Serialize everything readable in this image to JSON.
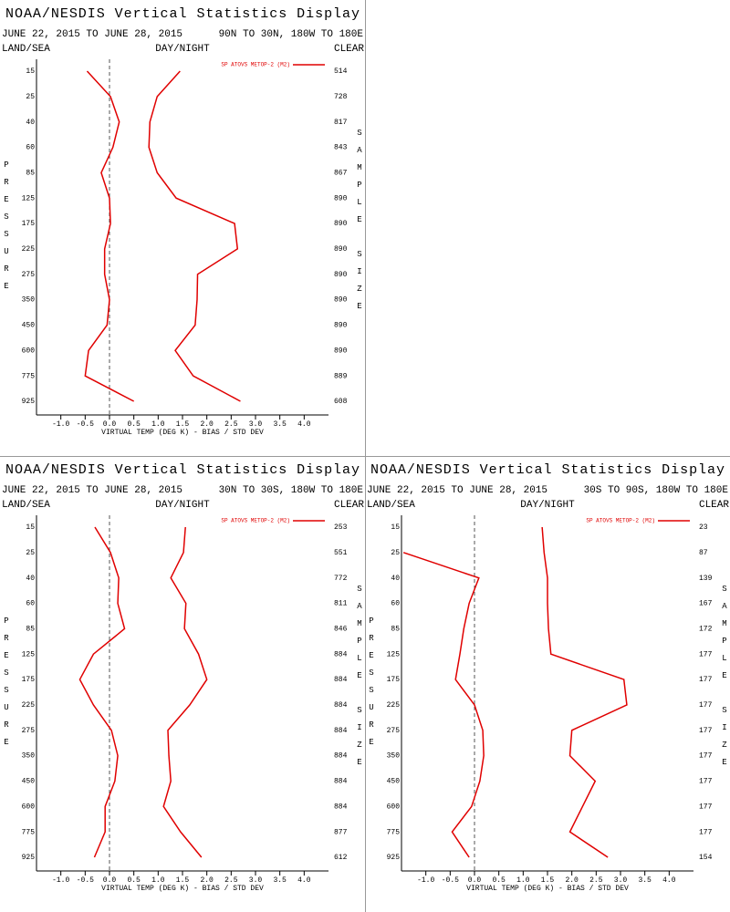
{
  "chart_data": [
    {
      "type": "line",
      "title": "NOAA/NESDIS Vertical Statistics Display",
      "date_range": "JUNE 22, 2015 TO JUNE 28, 2015",
      "region": "90N TO 30N, 180W TO 180E",
      "left_label": "LAND/SEA",
      "middle_label": "DAY/NIGHT",
      "right_label": "CLEAR",
      "y_label": "PRESSURE",
      "y2_label": "SAMPLE SIZE",
      "x_label": "VIRTUAL TEMP (DEG K) - BIAS / STD DEV",
      "categories": [
        "15",
        "25",
        "40",
        "60",
        "85",
        "125",
        "175",
        "225",
        "275",
        "350",
        "450",
        "600",
        "775",
        "925"
      ],
      "sample_size": [
        514,
        728,
        817,
        843,
        867,
        890,
        890,
        890,
        890,
        890,
        890,
        890,
        889,
        608
      ],
      "series": [
        {
          "name": "SP ATOVS METOP-2 (M2)",
          "color": "#e00000",
          "bias": [
            -0.46,
            0.02,
            0.2,
            0.07,
            -0.17,
            0,
            0.02,
            -0.1,
            -0.1,
            0,
            -0.05,
            -0.43,
            -0.5,
            0.5
          ],
          "std_dev": [
            1.45,
            0.98,
            0.83,
            0.81,
            0.98,
            1.37,
            2.57,
            2.63,
            1.81,
            1.8,
            1.76,
            1.35,
            1.72,
            2.69
          ]
        }
      ],
      "xlim": [
        -1.5,
        4.5
      ],
      "xticks": [
        {
          "value": -1,
          "label": "-1.0"
        },
        -0.5,
        {
          "value": 0,
          "label": "0.0"
        },
        0.5,
        {
          "value": 1,
          "label": "1.0"
        },
        1.5,
        {
          "value": 2,
          "label": "2.0"
        },
        2.5,
        {
          "value": 3,
          "label": "3.0"
        },
        3.5,
        {
          "value": 4,
          "label": "4.0"
        }
      ],
      "zero_line": true
    },
    {
      "type": "line",
      "title": "NOAA/NESDIS Vertical Statistics Display",
      "date_range": "JUNE 22, 2015 TO JUNE 28, 2015",
      "region": "30N TO 30S, 180W TO 180E",
      "left_label": "LAND/SEA",
      "middle_label": "DAY/NIGHT",
      "right_label": "CLEAR",
      "y_label": "PRESSURE",
      "y2_label": "SAMPLE SIZE",
      "x_label": "VIRTUAL TEMP (DEG K) - BIAS / STD DEV",
      "categories": [
        "15",
        "25",
        "40",
        "60",
        "85",
        "125",
        "175",
        "225",
        "275",
        "350",
        "450",
        "600",
        "775",
        "925"
      ],
      "sample_size": [
        253,
        551,
        772,
        811,
        846,
        884,
        884,
        884,
        884,
        884,
        884,
        884,
        877,
        612
      ],
      "series": [
        {
          "name": "SP ATOVS METOP-2 (M2)",
          "color": "#e00000",
          "bias": [
            -0.3,
            0.02,
            0.19,
            0.17,
            0.31,
            -0.33,
            -0.61,
            -0.33,
            0.04,
            0.17,
            0.11,
            -0.09,
            -0.09,
            -0.31
          ],
          "std_dev": [
            1.56,
            1.52,
            1.26,
            1.57,
            1.54,
            1.83,
            2.0,
            1.65,
            1.2,
            1.22,
            1.26,
            1.11,
            1.46,
            1.89
          ]
        }
      ],
      "xlim": [
        -1.5,
        4.5
      ],
      "xticks": [
        {
          "value": -1,
          "label": "-1.0"
        },
        -0.5,
        {
          "value": 0,
          "label": "0.0"
        },
        0.5,
        {
          "value": 1,
          "label": "1.0"
        },
        1.5,
        {
          "value": 2,
          "label": "2.0"
        },
        2.5,
        {
          "value": 3,
          "label": "3.0"
        },
        3.5,
        {
          "value": 4,
          "label": "4.0"
        }
      ],
      "zero_line": true
    },
    {
      "type": "line",
      "title": "NOAA/NESDIS Vertical Statistics Display",
      "date_range": "JUNE 22, 2015 TO JUNE 28, 2015",
      "region": "30S TO 90S, 180W TO 180E",
      "left_label": "LAND/SEA",
      "middle_label": "DAY/NIGHT",
      "right_label": "CLEAR",
      "y_label": "PRESSURE",
      "y2_label": "SAMPLE SIZE",
      "x_label": "VIRTUAL TEMP (DEG K) - BIAS / STD DEV",
      "categories": [
        "15",
        "25",
        "40",
        "60",
        "85",
        "125",
        "175",
        "225",
        "275",
        "350",
        "450",
        "600",
        "775",
        "925"
      ],
      "sample_size": [
        23,
        87,
        139,
        167,
        172,
        177,
        177,
        177,
        177,
        177,
        177,
        177,
        177,
        154
      ],
      "series": [
        {
          "name": "SP ATOVS METOP-2 (M2)",
          "color": "#e00000",
          "bias": [
            null,
            -1.46,
            0.09,
            -0.11,
            -0.22,
            -0.3,
            -0.39,
            0,
            0.17,
            0.19,
            0.11,
            -0.06,
            -0.46,
            -0.11
          ],
          "std_dev": [
            1.39,
            1.43,
            1.5,
            1.5,
            1.52,
            1.57,
            3.07,
            3.13,
            2.0,
            1.96,
            2.48,
            2.22,
            1.96,
            2.74
          ]
        }
      ],
      "xlim": [
        -1.5,
        4.5
      ],
      "xticks": [
        {
          "value": -1,
          "label": "-1.0"
        },
        -0.5,
        {
          "value": 0,
          "label": "0.0"
        },
        0.5,
        {
          "value": 1,
          "label": "1.0"
        },
        1.5,
        {
          "value": 2,
          "label": "2.0"
        },
        2.5,
        {
          "value": 3,
          "label": "3.0"
        },
        3.5,
        {
          "value": 4,
          "label": "4.0"
        }
      ],
      "zero_line": true
    }
  ]
}
